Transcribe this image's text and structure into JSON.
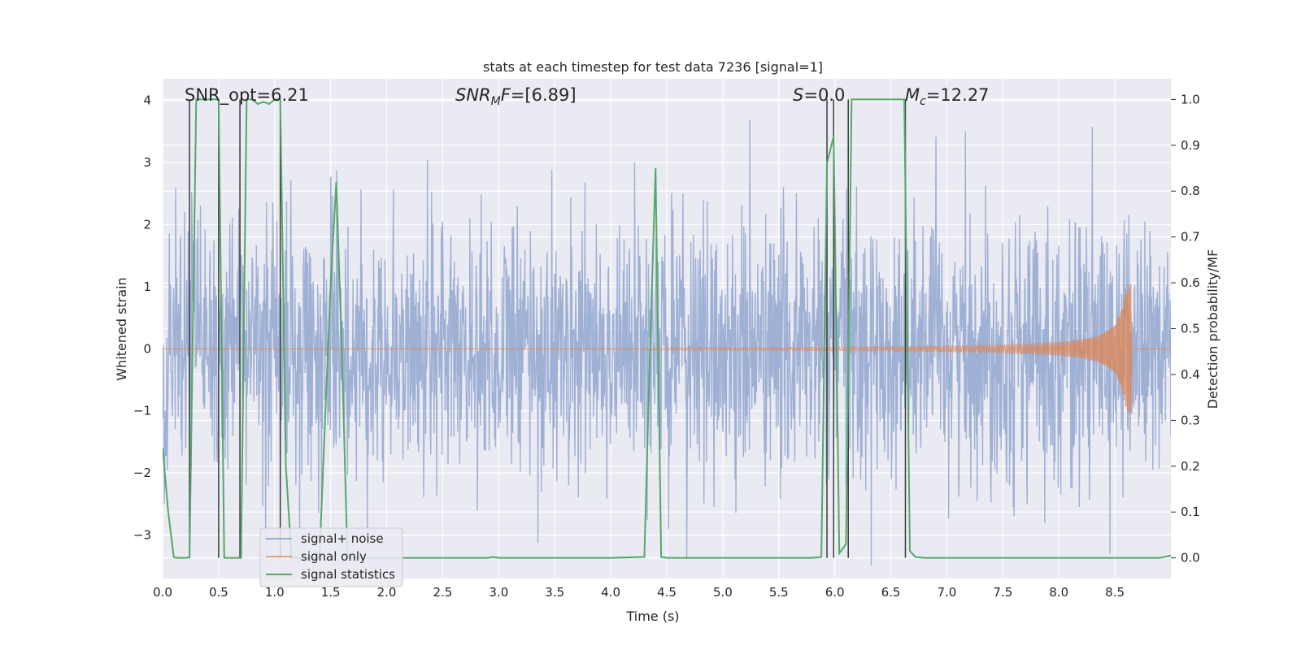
{
  "chart_data": {
    "type": "line",
    "title": "stats at each timestep for test data 7236 [signal=1]",
    "xlabel": "Time (s)",
    "ylabel_left": "Whitened strain",
    "ylabel_right": "Detection probability/MF",
    "xlim": [
      0,
      9.0
    ],
    "ylim_left": [
      -3.7,
      4.35
    ],
    "ylim_right": [
      -0.045,
      1.045
    ],
    "x_ticks": [
      0.0,
      0.5,
      1.0,
      1.5,
      2.0,
      2.5,
      3.0,
      3.5,
      4.0,
      4.5,
      5.0,
      5.5,
      6.0,
      6.5,
      7.0,
      7.5,
      8.0,
      8.5
    ],
    "x_tick_labels": [
      "0.0",
      "0.5",
      "1.0",
      "1.5",
      "2.0",
      "2.5",
      "3.0",
      "3.5",
      "4.0",
      "4.5",
      "5.0",
      "5.5",
      "6.0",
      "6.5",
      "7.0",
      "7.5",
      "8.0",
      "8.5"
    ],
    "y_left_ticks": [
      -3,
      -2,
      -1,
      0,
      1,
      2,
      3,
      4
    ],
    "y_left_tick_labels": [
      "−3",
      "−2",
      "−1",
      "0",
      "1",
      "2",
      "3",
      "4"
    ],
    "y_right_ticks": [
      0.0,
      0.1,
      0.2,
      0.3,
      0.4,
      0.5,
      0.6,
      0.7,
      0.8,
      0.9,
      1.0
    ],
    "y_right_tick_labels": [
      "0.0",
      "0.1",
      "0.2",
      "0.3",
      "0.4",
      "0.5",
      "0.6",
      "0.7",
      "0.8",
      "0.9",
      "1.0"
    ],
    "annotations": {
      "snr_opt": "SNR_opt=6.21",
      "snr_mf_label": "SNR",
      "snr_mf_sub": "M",
      "snr_mf_rest": "F=[6.89]",
      "s_label": "S",
      "s_value": "=0.0",
      "mc_label": "M",
      "mc_sub": "c",
      "mc_value": "=12.27"
    },
    "series": [
      {
        "name": "signal+ noise",
        "color": "#9badd3",
        "axis": "left",
        "description": "noisy whitened strain, amplitude roughly ±3.5"
      },
      {
        "name": "signal only",
        "color": "#dd8452",
        "axis": "left",
        "chirp_start": 4.3,
        "chirp_end": 8.65,
        "peak_amplitude": 1.05
      },
      {
        "name": "signal statistics",
        "color": "#55a868",
        "axis": "right",
        "x": [
          0.0,
          0.05,
          0.1,
          0.15,
          0.2,
          0.24,
          0.3,
          0.35,
          0.4,
          0.45,
          0.5,
          0.55,
          0.6,
          0.65,
          0.7,
          0.75,
          0.8,
          0.85,
          0.9,
          0.95,
          1.0,
          1.05,
          1.1,
          1.15,
          1.2,
          1.3,
          1.4,
          1.5,
          1.55,
          1.6,
          1.65,
          1.7,
          1.8,
          2.0,
          2.5,
          2.9,
          2.95,
          3.0,
          3.5,
          4.0,
          4.3,
          4.35,
          4.4,
          4.45,
          4.5,
          5.0,
          5.5,
          5.8,
          5.88,
          5.93,
          5.99,
          6.04,
          6.1,
          6.15,
          6.2,
          6.5,
          6.62,
          6.67,
          6.72,
          6.8,
          7.0,
          7.5,
          8.0,
          8.5,
          8.9,
          9.0
        ],
        "values": [
          0.24,
          0.1,
          0.001,
          0.0,
          0.0,
          0.001,
          1.0,
          1.0,
          1.0,
          1.0,
          1.0,
          0.0,
          0.0,
          0.0,
          0.0,
          1.0,
          1.0,
          0.99,
          0.995,
          0.99,
          1.0,
          1.0,
          0.2,
          0.0,
          0.0,
          0.0,
          0.0,
          0.6,
          0.82,
          0.45,
          0.0,
          0.0,
          0.0,
          0.0,
          0.0,
          0.0,
          0.002,
          0.0,
          0.0,
          0.0,
          0.002,
          0.45,
          0.85,
          0.002,
          0.0,
          0.0,
          0.0,
          0.0,
          0.002,
          0.86,
          0.92,
          0.01,
          0.03,
          1.0,
          1.0,
          1.0,
          1.0,
          0.015,
          0.002,
          0.0,
          0.0,
          0.0,
          0.0,
          0.0,
          0.0,
          0.005
        ]
      }
    ],
    "vertical_markers": [
      0.24,
      0.5,
      0.69,
      1.05,
      5.93,
      5.99,
      6.12,
      6.63
    ],
    "legend": {
      "placement": "lower-left",
      "entries": [
        "signal+ noise",
        "signal only",
        "signal statistics"
      ]
    },
    "grid": true
  },
  "colors": {
    "plot_background": "#eaeaf2",
    "grid": "#ffffff",
    "noise": "#9badd3",
    "signal": "#dd8452",
    "stats": "#55a868",
    "marker": "#3a3a3a"
  }
}
